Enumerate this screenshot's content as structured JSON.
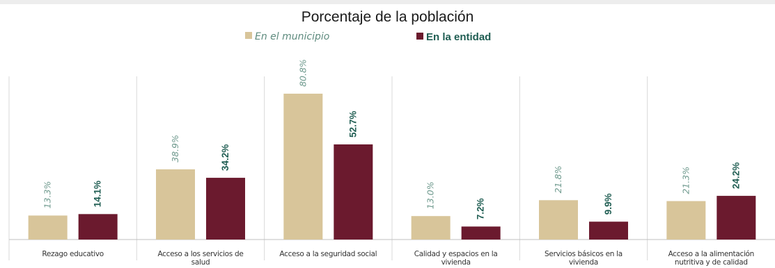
{
  "chart_data": {
    "type": "bar",
    "title": "Porcentaje de la población",
    "categories": [
      [
        "Rezago educativo"
      ],
      [
        "Acceso a los servicios de",
        "salud"
      ],
      [
        "Acceso a la seguridad social"
      ],
      [
        "Calidad y espacios en la",
        "vivienda"
      ],
      [
        "Servicios básicos en la",
        "vivienda"
      ],
      [
        "Acceso a la alimentación",
        "nutritiva y de calidad"
      ]
    ],
    "series": [
      {
        "name": "En el municipio",
        "values": [
          13.3,
          38.9,
          80.8,
          13.0,
          21.8,
          21.3
        ],
        "labels": [
          "13.3%",
          "38.9%",
          "80.8%",
          "13.0%",
          "21.8%",
          "21.3%"
        ]
      },
      {
        "name": "En la entidad",
        "values": [
          14.1,
          34.2,
          52.7,
          7.2,
          9.9,
          24.2
        ],
        "labels": [
          "14.1%",
          "34.2%",
          "52.7%",
          "7.2%",
          "9.9%",
          "24.2%"
        ]
      }
    ],
    "ylim": [
      0,
      100
    ],
    "grid": false,
    "legend_position": "top-center",
    "colors": {
      "municipio": "#d8c59a",
      "entidad": "#6b1a2e",
      "label_municipio": "#6f9a8e",
      "label_entidad": "#1f5d52"
    }
  }
}
